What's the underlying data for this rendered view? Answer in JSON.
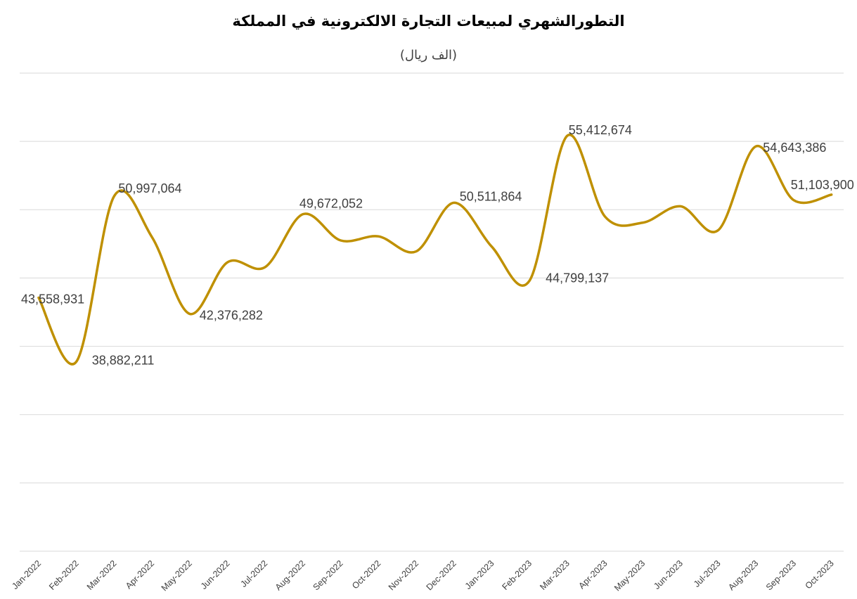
{
  "chart_data": {
    "type": "line",
    "title": "التطورالشهري لمبيعات التجارة الالكترونية في المملكة",
    "subtitle": "(الف ريال)",
    "categories": [
      "Jan-2022",
      "Feb-2022",
      "Mar-2022",
      "Apr-2022",
      "May-2022",
      "Jun-2022",
      "Jul-2022",
      "Aug-2022",
      "Sep-2022",
      "Oct-2022",
      "Nov-2022",
      "Dec-2022",
      "Jan-2023",
      "Feb-2023",
      "Mar-2023",
      "Apr-2023",
      "May-2023",
      "Jun-2023",
      "Jul-2023",
      "Aug-2023",
      "Sep-2023",
      "Oct-2023"
    ],
    "series": [
      {
        "values": [
          43558931,
          38882211,
          50997064,
          48000000,
          42376282,
          46150000,
          45800000,
          49672052,
          47750000,
          48050000,
          46950000,
          50511864,
          47300000,
          44799137,
          55412674,
          49500000,
          49050000,
          50250000,
          48500000,
          54643386,
          50700000,
          51103900
        ],
        "color": "#BF9000",
        "labeled_points": [
          {
            "index": 0,
            "text": "43,558,931"
          },
          {
            "index": 1,
            "text": "38,882,211"
          },
          {
            "index": 2,
            "text": "50,997,064"
          },
          {
            "index": 4,
            "text": "42,376,282"
          },
          {
            "index": 7,
            "text": "49,672,052"
          },
          {
            "index": 11,
            "text": "50,511,864"
          },
          {
            "index": 13,
            "text": "44,799,137"
          },
          {
            "index": 14,
            "text": "55,412,674"
          },
          {
            "index": 19,
            "text": "54,643,386"
          },
          {
            "index": 21,
            "text": "51,103,900"
          }
        ]
      }
    ],
    "ylim": [
      25000000,
      60000000
    ],
    "gridline_step": 5000000,
    "grid": true,
    "y_tick_labels_shown": false,
    "legend": "none"
  }
}
